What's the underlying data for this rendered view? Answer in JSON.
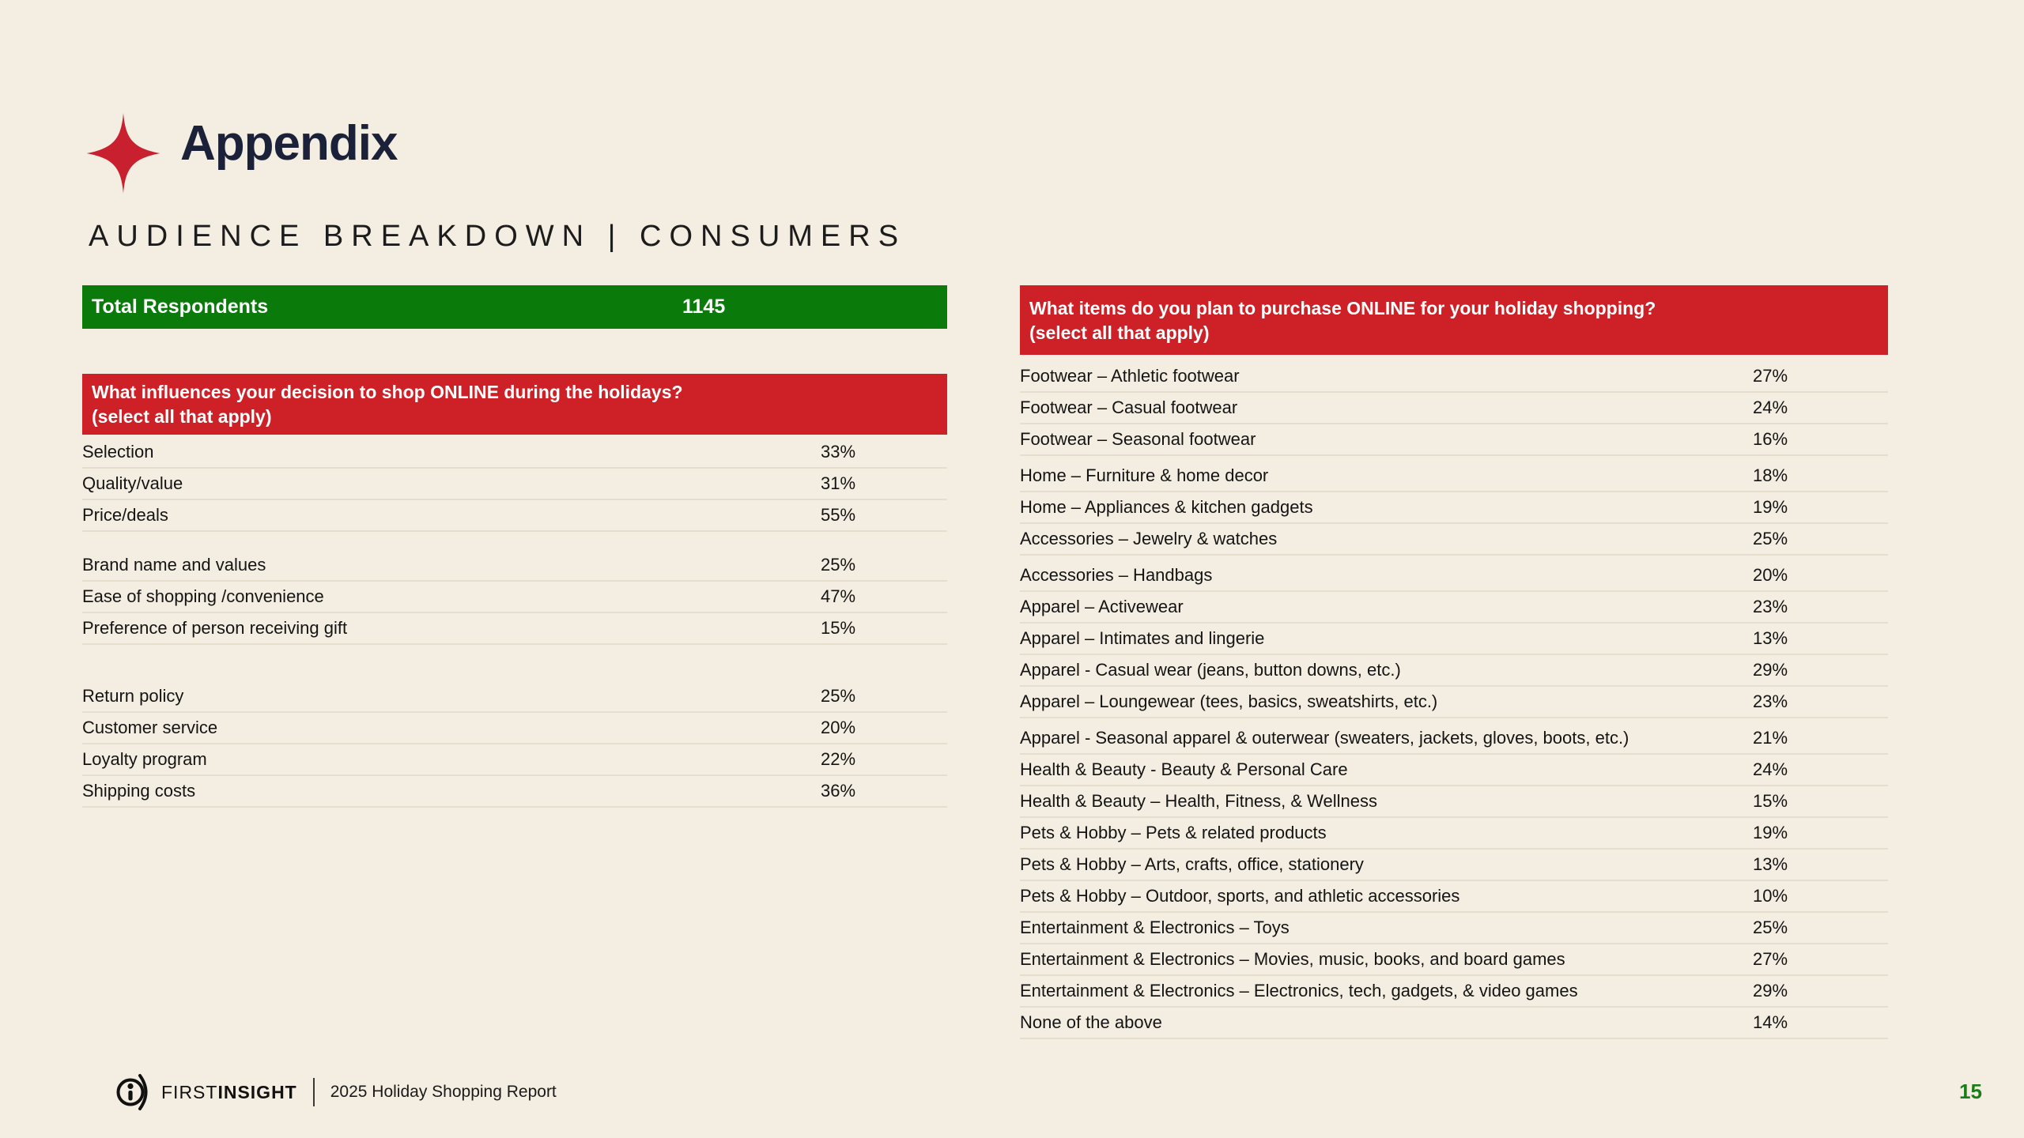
{
  "slide": {
    "title": "Appendix",
    "subtitle": "AUDIENCE BREAKDOWN | CONSUMERS",
    "page_number": "15"
  },
  "totals": {
    "label": "Total Respondents",
    "value": "1145"
  },
  "left_table": {
    "header_line1": "What influences your decision to shop ONLINE during the holidays?",
    "header_line2": "(select all that apply)",
    "rows": [
      {
        "label": "Selection",
        "value": "33%"
      },
      {
        "label": "Quality/value",
        "value": "31%"
      },
      {
        "label": "Price/deals",
        "value": "55%"
      },
      {
        "label": "Brand name and values",
        "value": "25%",
        "gap": "md"
      },
      {
        "label": "Ease of shopping /convenience",
        "value": "47%"
      },
      {
        "label": "Preference of person receiving gift",
        "value": "15%"
      },
      {
        "label": "Return policy",
        "value": "25%",
        "gap": "lg"
      },
      {
        "label": "Customer service",
        "value": "20%"
      },
      {
        "label": "Loyalty program",
        "value": "22%"
      },
      {
        "label": "Shipping costs",
        "value": "36%"
      }
    ]
  },
  "right_table": {
    "header_line1": "What items do you plan to purchase ONLINE for your holiday shopping?",
    "header_line2": "(select all that apply)",
    "rows": [
      {
        "label": "Footwear – Athletic footwear",
        "value": "27%"
      },
      {
        "label": "Footwear – Casual footwear",
        "value": "24%"
      },
      {
        "label": "Footwear – Seasonal footwear",
        "value": "16%"
      },
      {
        "label": "Home – Furniture & home decor",
        "value": "18%",
        "gap": "sm"
      },
      {
        "label": "Home – Appliances & kitchen gadgets",
        "value": "19%"
      },
      {
        "label": "Accessories – Jewelry & watches",
        "value": "25%"
      },
      {
        "label": "Accessories – Handbags",
        "value": "20%",
        "gap": "sm"
      },
      {
        "label": "Apparel – Activewear",
        "value": "23%"
      },
      {
        "label": "Apparel – Intimates and lingerie",
        "value": "13%"
      },
      {
        "label": "Apparel - Casual wear (jeans, button downs, etc.)",
        "value": "29%"
      },
      {
        "label": "Apparel – Loungewear (tees, basics, sweatshirts, etc.)",
        "value": "23%"
      },
      {
        "label": "Apparel - Seasonal apparel & outerwear (sweaters, jackets, gloves, boots, etc.)",
        "value": "21%",
        "gap": "sm"
      },
      {
        "label": "Health & Beauty - Beauty & Personal Care",
        "value": "24%"
      },
      {
        "label": "Health & Beauty – Health, Fitness, & Wellness",
        "value": "15%"
      },
      {
        "label": "Pets & Hobby – Pets & related products",
        "value": "19%"
      },
      {
        "label": "Pets & Hobby – Arts, crafts, office, stationery",
        "value": "13%"
      },
      {
        "label": "Pets & Hobby – Outdoor, sports, and athletic accessories",
        "value": "10%"
      },
      {
        "label": "Entertainment & Electronics – Toys",
        "value": "25%"
      },
      {
        "label": "Entertainment & Electronics – Movies, music, books, and board games",
        "value": "27%"
      },
      {
        "label": "Entertainment & Electronics – Electronics, tech, gadgets, & video games",
        "value": "29%"
      },
      {
        "label": "None of the above",
        "value": "14%"
      }
    ]
  },
  "footer": {
    "brand_first": "FIRST",
    "brand_second": "INSIGHT",
    "report": "2025 Holiday Shopping Report"
  },
  "icons": {
    "title_icon": "sparkle-diamond-icon",
    "brand_icon": "first-insight-logo"
  },
  "colors": {
    "background": "#F4EDE1",
    "red": "#CD2027",
    "green": "#0A7A0A",
    "navy_title": "#1B2138",
    "page_number_green": "#1A7D1A",
    "divider": "#E5DECD"
  }
}
